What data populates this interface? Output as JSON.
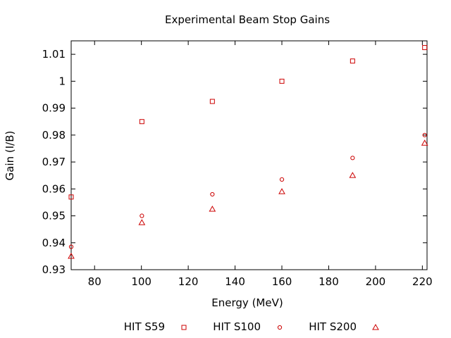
{
  "chart_data": {
    "type": "scatter",
    "title": "Experimental Beam Stop Gains",
    "xlabel": "Energy (MeV)",
    "ylabel": "Gain (I/B)",
    "xlim": [
      70,
      222
    ],
    "ylim": [
      0.93,
      1.015
    ],
    "xticks": [
      80,
      100,
      120,
      140,
      160,
      180,
      200,
      220
    ],
    "yticks": [
      0.93,
      0.94,
      0.95,
      0.96,
      0.97,
      0.98,
      0.99,
      1,
      1.01
    ],
    "ytick_labels": [
      "0.93",
      "0.94",
      "0.95",
      "0.96",
      "0.97",
      "0.98",
      "0.99",
      "1",
      "1.01"
    ],
    "grid": false,
    "legend_position": "bottom",
    "series": [
      {
        "name": "HIT S59",
        "marker": "square",
        "color": "#cc0000",
        "points": [
          [
            70,
            0.957
          ],
          [
            100.2,
            0.985
          ],
          [
            130.3,
            0.9925
          ],
          [
            160,
            1.0
          ],
          [
            190.2,
            1.0075
          ],
          [
            221,
            1.0125
          ]
        ]
      },
      {
        "name": "HIT S100",
        "marker": "circle",
        "color": "#cc0000",
        "points": [
          [
            70,
            0.9385
          ],
          [
            100.2,
            0.95
          ],
          [
            130.3,
            0.958
          ],
          [
            160,
            0.9635
          ],
          [
            190.2,
            0.9715
          ],
          [
            221,
            0.98
          ]
        ]
      },
      {
        "name": "HIT S200",
        "marker": "triangle",
        "color": "#cc0000",
        "points": [
          [
            70,
            0.935
          ],
          [
            100.2,
            0.9475
          ],
          [
            130.3,
            0.9525
          ],
          [
            160,
            0.959
          ],
          [
            190.2,
            0.965
          ],
          [
            221,
            0.977
          ]
        ]
      }
    ]
  }
}
